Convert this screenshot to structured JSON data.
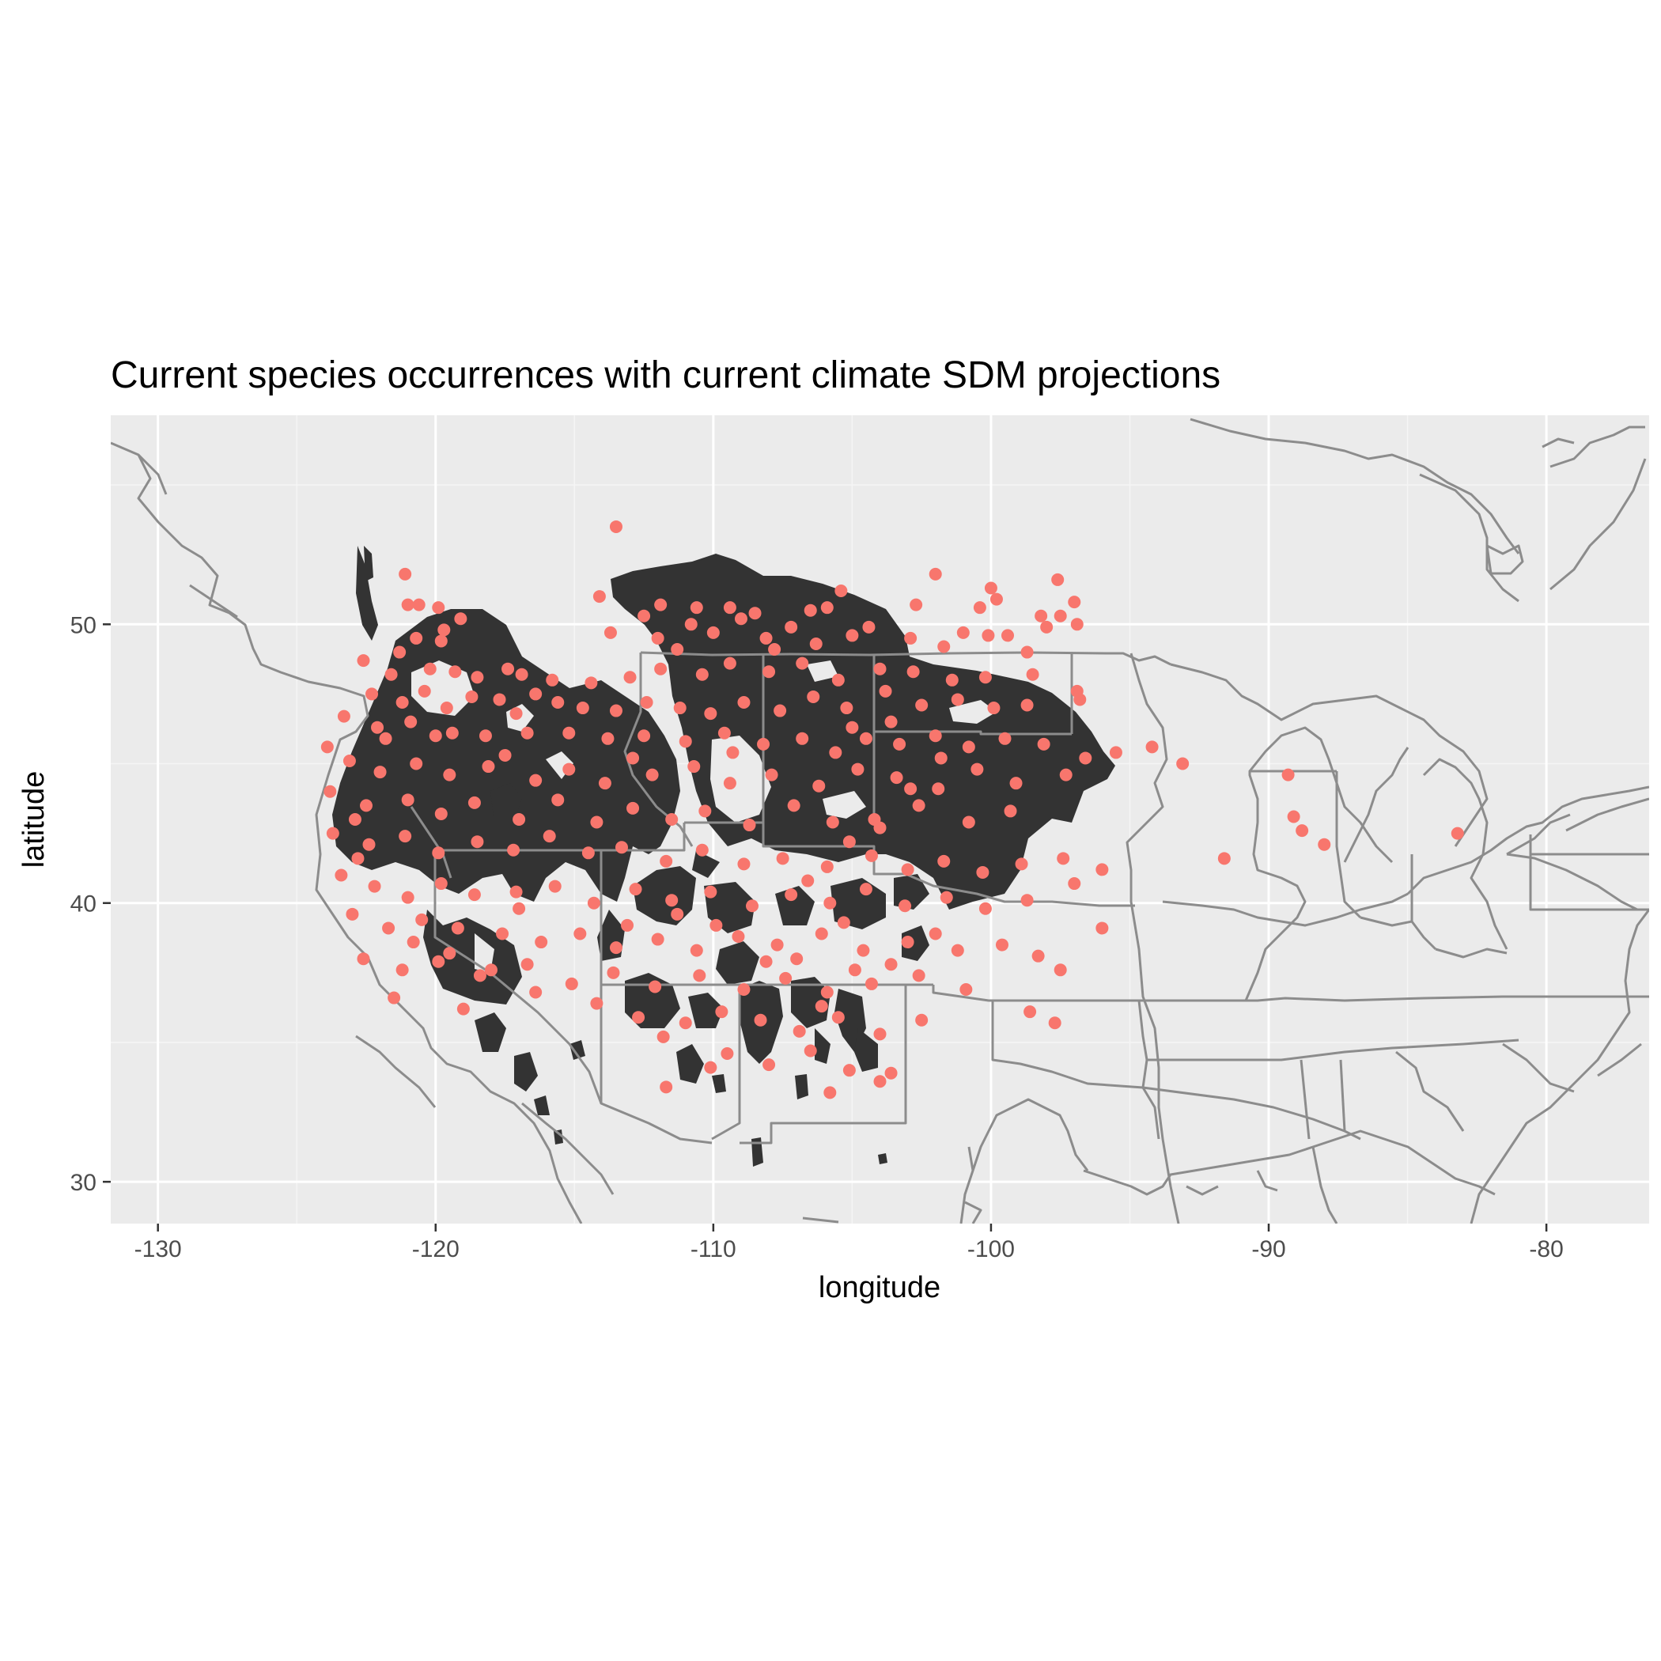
{
  "title": "Current species occurrences with current climate SDM projections",
  "xlabel": "longitude",
  "ylabel": "latitude",
  "colors": {
    "panel_bg": "#ebebeb",
    "grid_major": "#ffffff",
    "grid_minor": "#f5f5f5",
    "boundary": "#8c8c8c",
    "projection": "#333333",
    "occurrence": "#f8766d",
    "tick_label": "#4d4d4d"
  },
  "chart_data": {
    "type": "map",
    "xlim": [
      -131.7,
      -76.3
    ],
    "ylim": [
      28.5,
      57.5
    ],
    "x_ticks": [
      -130,
      -120,
      -110,
      -100,
      -90,
      -80
    ],
    "x_tick_labels": [
      "-130",
      "-120",
      "-110",
      "-100",
      "-90",
      "-80"
    ],
    "y_ticks": [
      30,
      40,
      50
    ],
    "y_tick_labels": [
      "30",
      "40",
      "50"
    ],
    "grid": true,
    "layers": [
      {
        "kind": "raster",
        "description": "current climate SDM projected suitable habitat (dark fill)"
      },
      {
        "kind": "boundaries",
        "description": "country, state and coastline outlines"
      },
      {
        "kind": "points",
        "description": "current species occurrences"
      }
    ],
    "occurrences": [
      [
        -113.5,
        53.5
      ],
      [
        -121.1,
        51.8
      ],
      [
        -102.0,
        51.8
      ],
      [
        -97.6,
        51.6
      ],
      [
        -100.0,
        51.3
      ],
      [
        -105.4,
        51.2
      ],
      [
        -114.1,
        51.0
      ],
      [
        -99.8,
        50.9
      ],
      [
        -97.0,
        50.8
      ],
      [
        -102.7,
        50.7
      ],
      [
        -121.0,
        50.7
      ],
      [
        -120.6,
        50.7
      ],
      [
        -119.9,
        50.6
      ],
      [
        -111.9,
        50.7
      ],
      [
        -110.6,
        50.6
      ],
      [
        -109.4,
        50.6
      ],
      [
        -108.5,
        50.4
      ],
      [
        -106.5,
        50.5
      ],
      [
        -105.9,
        50.6
      ],
      [
        -100.4,
        50.6
      ],
      [
        -98.2,
        50.3
      ],
      [
        -97.5,
        50.3
      ],
      [
        -96.9,
        50.0
      ],
      [
        -119.1,
        50.2
      ],
      [
        -119.7,
        49.8
      ],
      [
        -120.7,
        49.5
      ],
      [
        -112.5,
        50.3
      ],
      [
        -110.8,
        50.0
      ],
      [
        -109.0,
        50.2
      ],
      [
        -107.2,
        49.9
      ],
      [
        -104.4,
        49.9
      ],
      [
        -101.0,
        49.7
      ],
      [
        -100.1,
        49.6
      ],
      [
        -99.4,
        49.6
      ],
      [
        -98.0,
        49.9
      ],
      [
        -113.7,
        49.7
      ],
      [
        -112.0,
        49.5
      ],
      [
        -111.3,
        49.1
      ],
      [
        -110.0,
        49.7
      ],
      [
        -108.1,
        49.5
      ],
      [
        -107.8,
        49.1
      ],
      [
        -106.3,
        49.3
      ],
      [
        -105.0,
        49.6
      ],
      [
        -102.9,
        49.5
      ],
      [
        -101.7,
        49.2
      ],
      [
        -98.7,
        49.0
      ],
      [
        -119.8,
        49.4
      ],
      [
        -121.3,
        49.0
      ],
      [
        -122.6,
        48.7
      ],
      [
        -121.6,
        48.2
      ],
      [
        -120.2,
        48.4
      ],
      [
        -119.3,
        48.3
      ],
      [
        -118.5,
        48.1
      ],
      [
        -117.4,
        48.4
      ],
      [
        -116.9,
        48.2
      ],
      [
        -115.8,
        48.0
      ],
      [
        -114.4,
        47.9
      ],
      [
        -113.0,
        48.1
      ],
      [
        -111.9,
        48.4
      ],
      [
        -110.4,
        48.2
      ],
      [
        -109.4,
        48.6
      ],
      [
        -108.0,
        48.3
      ],
      [
        -106.8,
        48.6
      ],
      [
        -105.5,
        48.0
      ],
      [
        -104.0,
        48.4
      ],
      [
        -102.8,
        48.3
      ],
      [
        -101.4,
        48.0
      ],
      [
        -100.2,
        48.1
      ],
      [
        -98.5,
        48.2
      ],
      [
        -96.9,
        47.6
      ],
      [
        -122.3,
        47.5
      ],
      [
        -121.2,
        47.2
      ],
      [
        -120.4,
        47.6
      ],
      [
        -119.6,
        47.0
      ],
      [
        -118.7,
        47.4
      ],
      [
        -117.7,
        47.3
      ],
      [
        -117.1,
        46.8
      ],
      [
        -116.4,
        47.5
      ],
      [
        -115.6,
        47.2
      ],
      [
        -114.7,
        47.0
      ],
      [
        -113.5,
        46.9
      ],
      [
        -112.4,
        47.2
      ],
      [
        -111.2,
        47.0
      ],
      [
        -110.1,
        46.8
      ],
      [
        -108.9,
        47.2
      ],
      [
        -107.6,
        46.9
      ],
      [
        -106.4,
        47.4
      ],
      [
        -105.2,
        47.0
      ],
      [
        -103.8,
        47.6
      ],
      [
        -102.5,
        47.1
      ],
      [
        -101.2,
        47.3
      ],
      [
        -99.9,
        47.0
      ],
      [
        -98.7,
        47.1
      ],
      [
        -96.8,
        47.3
      ],
      [
        -123.3,
        46.7
      ],
      [
        -122.1,
        46.3
      ],
      [
        -120.9,
        46.5
      ],
      [
        -119.4,
        46.1
      ],
      [
        -118.2,
        46.0
      ],
      [
        -116.7,
        46.1
      ],
      [
        -115.2,
        46.1
      ],
      [
        -113.8,
        45.9
      ],
      [
        -112.5,
        46.0
      ],
      [
        -111.0,
        45.8
      ],
      [
        -109.6,
        46.1
      ],
      [
        -108.2,
        45.7
      ],
      [
        -106.8,
        45.9
      ],
      [
        -105.6,
        45.4
      ],
      [
        -104.5,
        45.9
      ],
      [
        -103.3,
        45.7
      ],
      [
        -102.0,
        46.0
      ],
      [
        -100.8,
        45.6
      ],
      [
        -99.5,
        45.9
      ],
      [
        -98.1,
        45.7
      ],
      [
        -96.6,
        45.2
      ],
      [
        -95.5,
        45.4
      ],
      [
        -94.2,
        45.6
      ],
      [
        -123.9,
        45.6
      ],
      [
        -123.1,
        45.1
      ],
      [
        -122.0,
        44.7
      ],
      [
        -120.7,
        45.0
      ],
      [
        -119.5,
        44.6
      ],
      [
        -118.1,
        44.9
      ],
      [
        -116.4,
        44.4
      ],
      [
        -115.2,
        44.8
      ],
      [
        -113.9,
        44.3
      ],
      [
        -112.2,
        44.6
      ],
      [
        -110.7,
        44.9
      ],
      [
        -109.4,
        44.3
      ],
      [
        -107.9,
        44.6
      ],
      [
        -106.2,
        44.2
      ],
      [
        -104.8,
        44.8
      ],
      [
        -103.4,
        44.5
      ],
      [
        -101.9,
        44.1
      ],
      [
        -100.5,
        44.8
      ],
      [
        -99.1,
        44.3
      ],
      [
        -97.3,
        44.6
      ],
      [
        -93.1,
        45.0
      ],
      [
        -89.3,
        44.6
      ],
      [
        -123.8,
        44.0
      ],
      [
        -122.5,
        43.5
      ],
      [
        -121.0,
        43.7
      ],
      [
        -119.8,
        43.2
      ],
      [
        -118.6,
        43.6
      ],
      [
        -117.0,
        43.0
      ],
      [
        -115.6,
        43.7
      ],
      [
        -114.2,
        42.9
      ],
      [
        -112.9,
        43.4
      ],
      [
        -111.5,
        43.0
      ],
      [
        -110.3,
        43.3
      ],
      [
        -108.7,
        42.8
      ],
      [
        -107.1,
        43.5
      ],
      [
        -105.7,
        42.9
      ],
      [
        -104.0,
        42.7
      ],
      [
        -102.6,
        43.5
      ],
      [
        -100.8,
        42.9
      ],
      [
        -99.3,
        43.3
      ],
      [
        -89.1,
        43.1
      ],
      [
        -88.8,
        42.6
      ],
      [
        -123.7,
        42.5
      ],
      [
        -122.4,
        42.1
      ],
      [
        -121.1,
        42.4
      ],
      [
        -119.9,
        41.8
      ],
      [
        -118.5,
        42.2
      ],
      [
        -117.2,
        41.9
      ],
      [
        -115.9,
        42.4
      ],
      [
        -114.5,
        41.8
      ],
      [
        -113.3,
        42.0
      ],
      [
        -111.7,
        41.5
      ],
      [
        -110.4,
        41.9
      ],
      [
        -108.9,
        41.4
      ],
      [
        -107.5,
        41.6
      ],
      [
        -105.9,
        41.3
      ],
      [
        -104.3,
        41.7
      ],
      [
        -103.0,
        41.2
      ],
      [
        -101.7,
        41.5
      ],
      [
        -100.3,
        41.1
      ],
      [
        -98.9,
        41.4
      ],
      [
        -97.4,
        41.6
      ],
      [
        -96.0,
        41.2
      ],
      [
        -91.6,
        41.6
      ],
      [
        -88.0,
        42.1
      ],
      [
        -83.2,
        42.5
      ],
      [
        -123.4,
        41.0
      ],
      [
        -122.2,
        40.6
      ],
      [
        -121.0,
        40.2
      ],
      [
        -119.8,
        40.7
      ],
      [
        -118.6,
        40.3
      ],
      [
        -117.1,
        40.4
      ],
      [
        -115.7,
        40.6
      ],
      [
        -114.3,
        40.0
      ],
      [
        -112.8,
        40.5
      ],
      [
        -111.5,
        40.1
      ],
      [
        -110.1,
        40.4
      ],
      [
        -108.6,
        39.9
      ],
      [
        -107.2,
        40.3
      ],
      [
        -105.8,
        40.0
      ],
      [
        -104.5,
        40.5
      ],
      [
        -103.1,
        39.9
      ],
      [
        -101.6,
        40.2
      ],
      [
        -100.2,
        39.8
      ],
      [
        -98.7,
        40.1
      ],
      [
        -97.0,
        40.7
      ],
      [
        -123.0,
        39.6
      ],
      [
        -121.7,
        39.1
      ],
      [
        -120.5,
        39.4
      ],
      [
        -119.2,
        39.1
      ],
      [
        -117.6,
        38.9
      ],
      [
        -116.2,
        38.6
      ],
      [
        -114.8,
        38.9
      ],
      [
        -113.5,
        38.4
      ],
      [
        -112.0,
        38.7
      ],
      [
        -110.6,
        38.3
      ],
      [
        -109.1,
        38.8
      ],
      [
        -107.7,
        38.5
      ],
      [
        -106.1,
        38.9
      ],
      [
        -104.6,
        38.3
      ],
      [
        -103.0,
        38.6
      ],
      [
        -101.2,
        38.3
      ],
      [
        -99.6,
        38.5
      ],
      [
        -98.3,
        38.1
      ],
      [
        -97.5,
        37.6
      ],
      [
        -96.0,
        39.1
      ],
      [
        -122.6,
        38.0
      ],
      [
        -121.2,
        37.6
      ],
      [
        -119.9,
        37.9
      ],
      [
        -118.4,
        37.4
      ],
      [
        -116.7,
        37.8
      ],
      [
        -115.1,
        37.1
      ],
      [
        -113.6,
        37.5
      ],
      [
        -112.1,
        37.0
      ],
      [
        -110.5,
        37.4
      ],
      [
        -108.9,
        36.9
      ],
      [
        -107.4,
        37.3
      ],
      [
        -105.9,
        36.8
      ],
      [
        -104.3,
        37.1
      ],
      [
        -102.6,
        37.4
      ],
      [
        -100.9,
        36.9
      ],
      [
        -98.6,
        36.1
      ],
      [
        -97.7,
        35.7
      ],
      [
        -121.5,
        36.6
      ],
      [
        -119.0,
        36.2
      ],
      [
        -116.4,
        36.8
      ],
      [
        -114.2,
        36.4
      ],
      [
        -112.7,
        35.9
      ],
      [
        -111.0,
        35.7
      ],
      [
        -109.7,
        36.1
      ],
      [
        -108.3,
        35.8
      ],
      [
        -106.9,
        35.4
      ],
      [
        -105.5,
        35.9
      ],
      [
        -104.0,
        35.3
      ],
      [
        -102.5,
        35.8
      ],
      [
        -111.8,
        35.2
      ],
      [
        -109.5,
        34.6
      ],
      [
        -108.0,
        34.2
      ],
      [
        -106.5,
        34.7
      ],
      [
        -105.1,
        34.0
      ],
      [
        -104.0,
        33.6
      ],
      [
        -105.8,
        33.2
      ],
      [
        -111.7,
        33.4
      ],
      [
        -110.1,
        34.1
      ],
      [
        -103.6,
        33.9
      ],
      [
        -106.1,
        36.3
      ],
      [
        -107.0,
        38.0
      ],
      [
        -105.3,
        39.3
      ],
      [
        -106.6,
        40.8
      ],
      [
        -105.1,
        42.2
      ],
      [
        -104.2,
        43.0
      ],
      [
        -102.9,
        44.1
      ],
      [
        -101.8,
        45.2
      ],
      [
        -103.6,
        46.5
      ],
      [
        -105.0,
        46.3
      ],
      [
        -109.3,
        45.4
      ],
      [
        -112.9,
        45.2
      ],
      [
        -117.5,
        45.3
      ],
      [
        -120.0,
        46.0
      ],
      [
        -121.8,
        45.9
      ],
      [
        -122.9,
        43.0
      ],
      [
        -122.8,
        41.6
      ],
      [
        -120.8,
        38.6
      ],
      [
        -119.5,
        38.2
      ],
      [
        -118.0,
        37.6
      ],
      [
        -117.0,
        39.8
      ],
      [
        -113.1,
        39.2
      ],
      [
        -111.3,
        39.6
      ],
      [
        -109.9,
        39.2
      ],
      [
        -108.1,
        37.9
      ],
      [
        -104.9,
        37.6
      ],
      [
        -103.6,
        37.8
      ],
      [
        -102.0,
        38.9
      ]
    ]
  }
}
